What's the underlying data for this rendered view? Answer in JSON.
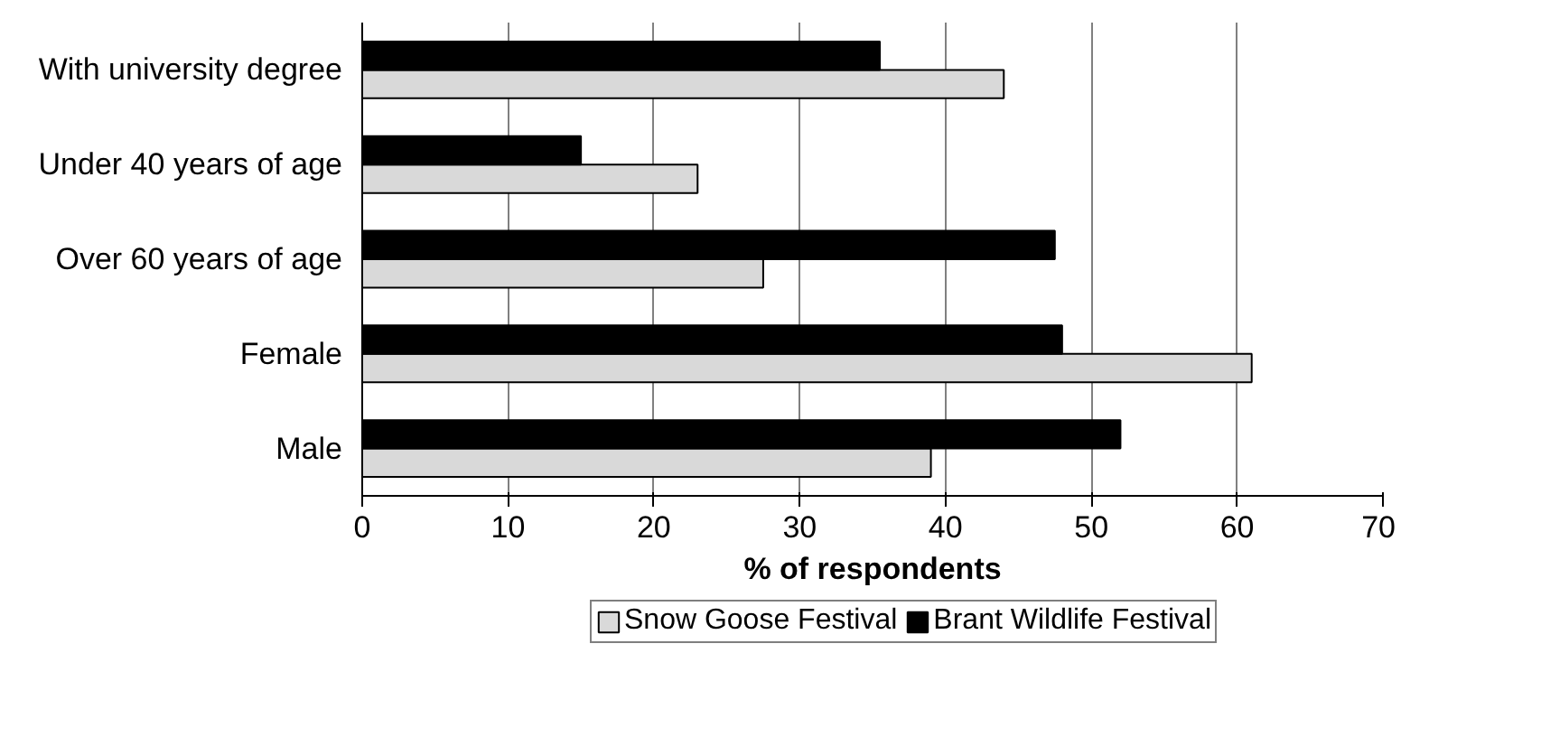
{
  "chart_data": {
    "type": "bar",
    "orientation": "horizontal",
    "xlabel": "% of respondents",
    "categories": [
      "With university degree",
      "Under 40 years of age",
      "Over 60 years of age",
      "Female",
      "Male"
    ],
    "series": [
      {
        "name": "Snow Goose Festival",
        "color": "#d9d9d9",
        "values": [
          44,
          23,
          27.5,
          61,
          39
        ]
      },
      {
        "name": "Brant Wildlife Festival",
        "color": "#000000",
        "values": [
          35.5,
          15,
          47.5,
          48,
          52
        ]
      }
    ],
    "xlim": [
      0,
      70
    ],
    "xticks": [
      0,
      10,
      20,
      30,
      40,
      50,
      60,
      70
    ],
    "grid": "x",
    "legend": "bottom"
  }
}
